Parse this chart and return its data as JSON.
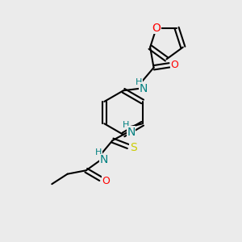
{
  "bg_color": "#ebebeb",
  "bond_color": "#000000",
  "atom_colors": {
    "O": "#ff0000",
    "N": "#008080",
    "S": "#cccc00",
    "H": "#008080",
    "C": "#000000"
  },
  "font_size": 9,
  "line_width": 1.5
}
